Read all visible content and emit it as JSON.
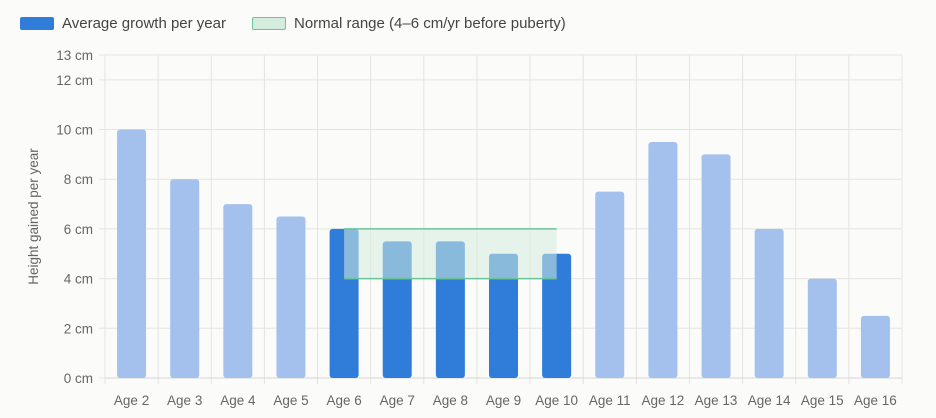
{
  "legend": {
    "items": [
      {
        "label": "Average growth per year",
        "color": "#2f7cd9",
        "border": "#2f7cd9"
      },
      {
        "label": "Normal range (4–6 cm/yr before puberty)",
        "color": "#d3ecde",
        "border": "#6cc49a"
      }
    ]
  },
  "chart_data": {
    "type": "bar",
    "categories": [
      "Age 2",
      "Age 3",
      "Age 4",
      "Age 5",
      "Age 6",
      "Age 7",
      "Age 8",
      "Age 9",
      "Age 10",
      "Age 11",
      "Age 12",
      "Age 13",
      "Age 14",
      "Age 15",
      "Age 16"
    ],
    "series": [
      {
        "name": "Average growth per year",
        "values": [
          10,
          8,
          7,
          6.5,
          6,
          5.5,
          5.5,
          5,
          5,
          7.5,
          9.5,
          9,
          6,
          4,
          2.5
        ],
        "highlighted": [
          false,
          false,
          false,
          false,
          true,
          true,
          true,
          true,
          true,
          false,
          false,
          false,
          false,
          false,
          false
        ],
        "color_highlight": "#2f7cd9",
        "color_faded": "#a3c1ec"
      }
    ],
    "band": {
      "name": "Normal range (4–6 cm/yr before puberty)",
      "y_min": 4,
      "y_max": 6,
      "x_start": "Age 6",
      "x_end": "Age 10",
      "fill": "#d3ecde",
      "stroke": "#6cc49a"
    },
    "ylabel": "Height gained per year",
    "yticks": [
      "0 cm",
      "2 cm",
      "4 cm",
      "6 cm",
      "8 cm",
      "10 cm",
      "12 cm",
      "13 cm"
    ],
    "ytick_values": [
      0,
      2,
      4,
      6,
      8,
      10,
      12,
      13
    ],
    "ylim": [
      0,
      13
    ],
    "grid": true,
    "legend_position": "top-left"
  }
}
